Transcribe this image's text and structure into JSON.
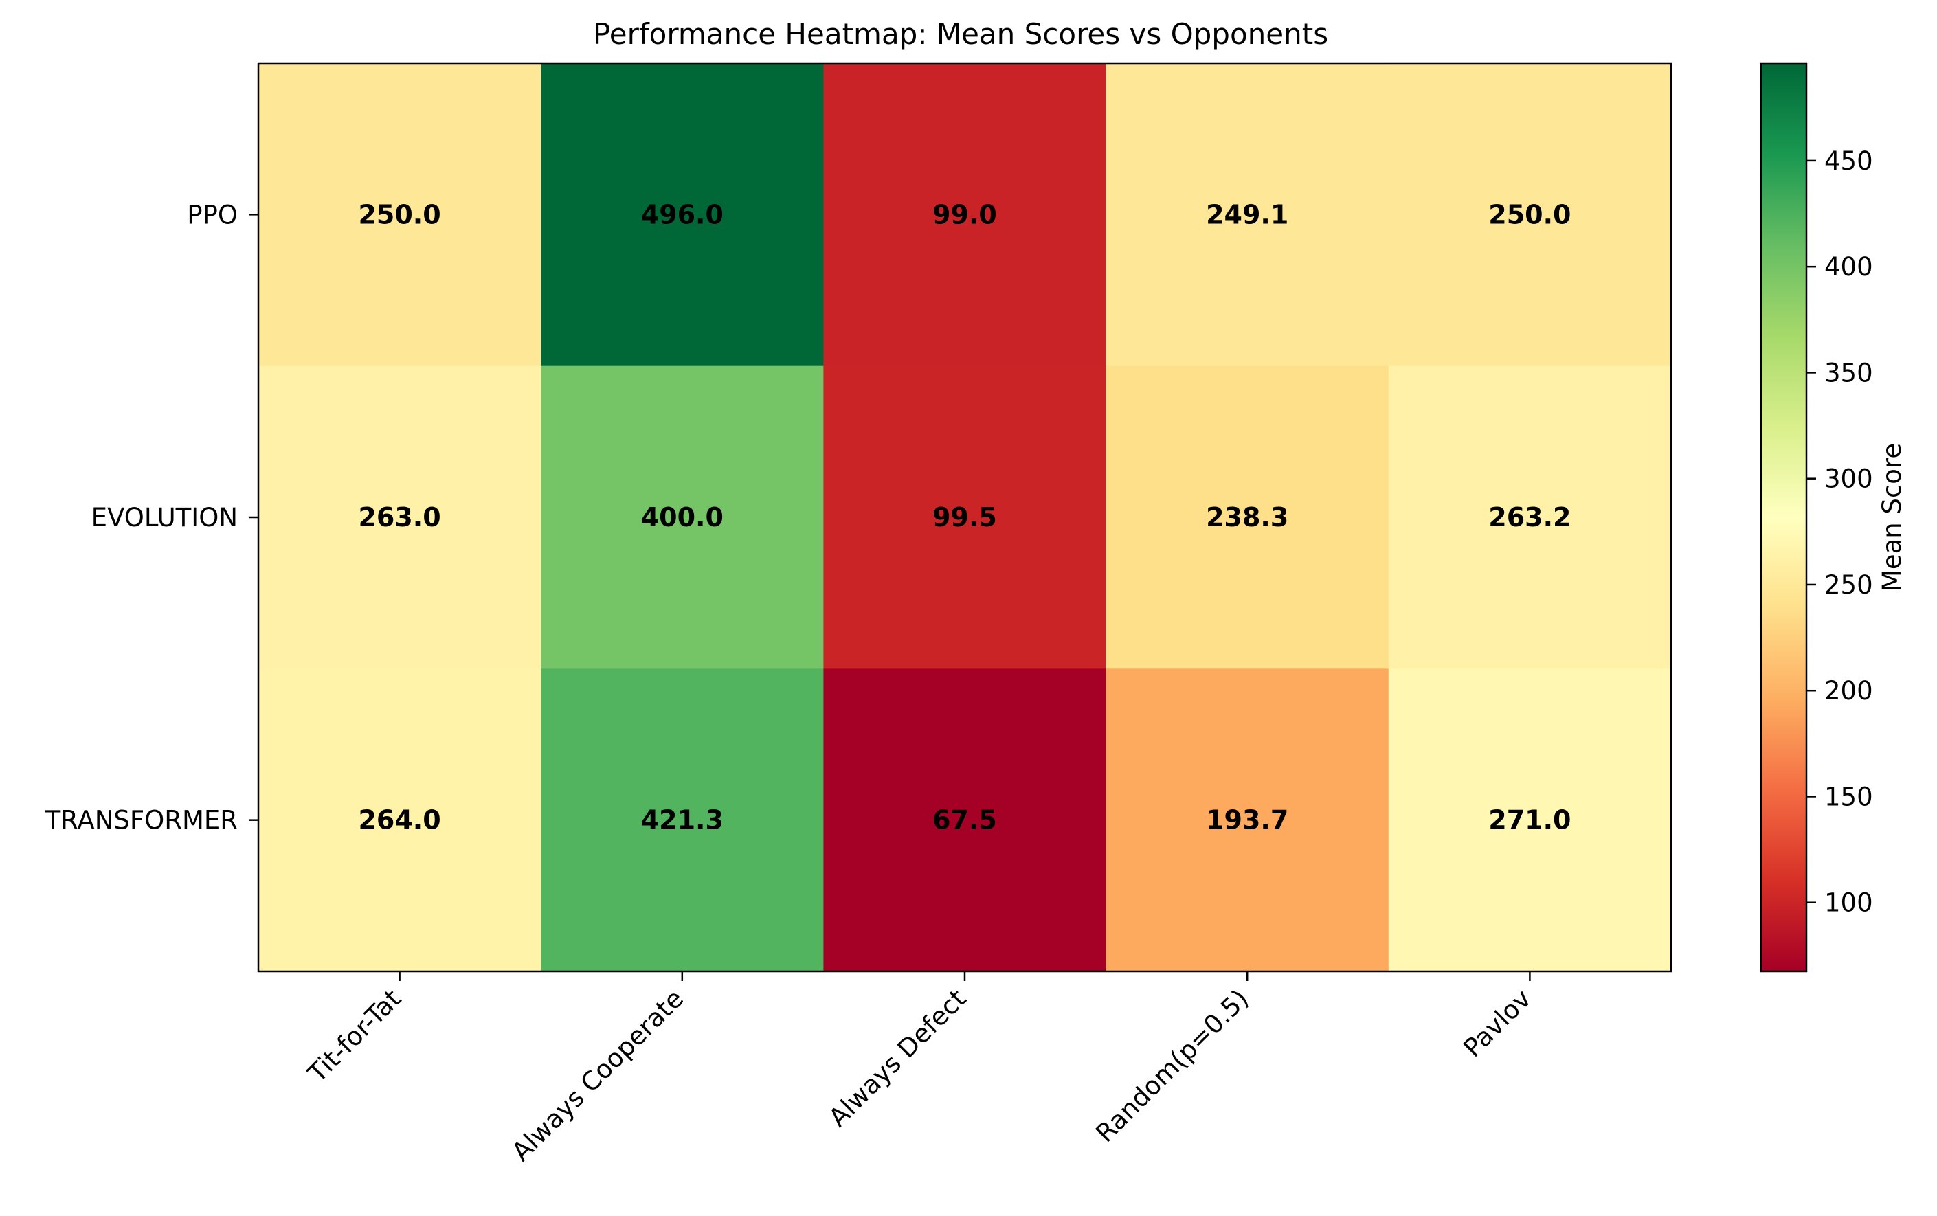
{
  "chart_data": {
    "type": "heatmap",
    "title": "Performance Heatmap: Mean Scores vs Opponents",
    "rows": [
      "PPO",
      "EVOLUTION",
      "TRANSFORMER"
    ],
    "columns": [
      "Tit-for-Tat",
      "Always Cooperate",
      "Always Defect",
      "Random(p=0.5)",
      "Pavlov"
    ],
    "values": [
      [
        250.0,
        496.0,
        99.0,
        249.1,
        250.0
      ],
      [
        263.0,
        400.0,
        99.5,
        238.3,
        263.2
      ],
      [
        264.0,
        421.3,
        67.5,
        193.7,
        271.0
      ]
    ],
    "value_labels": [
      [
        "250.0",
        "496.0",
        "99.0",
        "249.1",
        "250.0"
      ],
      [
        "263.0",
        "400.0",
        "99.5",
        "238.3",
        "263.2"
      ],
      [
        "264.0",
        "421.3",
        "67.5",
        "193.7",
        "271.0"
      ]
    ],
    "colormap": "RdYlGn",
    "colorbar": {
      "label": "Mean Score",
      "range": [
        67.5,
        496.0
      ],
      "ticks": [
        100,
        150,
        200,
        250,
        300,
        350,
        400,
        450
      ]
    },
    "colors": {
      "low": "#a50026",
      "mid": "#ffffbf",
      "high": "#006837"
    }
  }
}
